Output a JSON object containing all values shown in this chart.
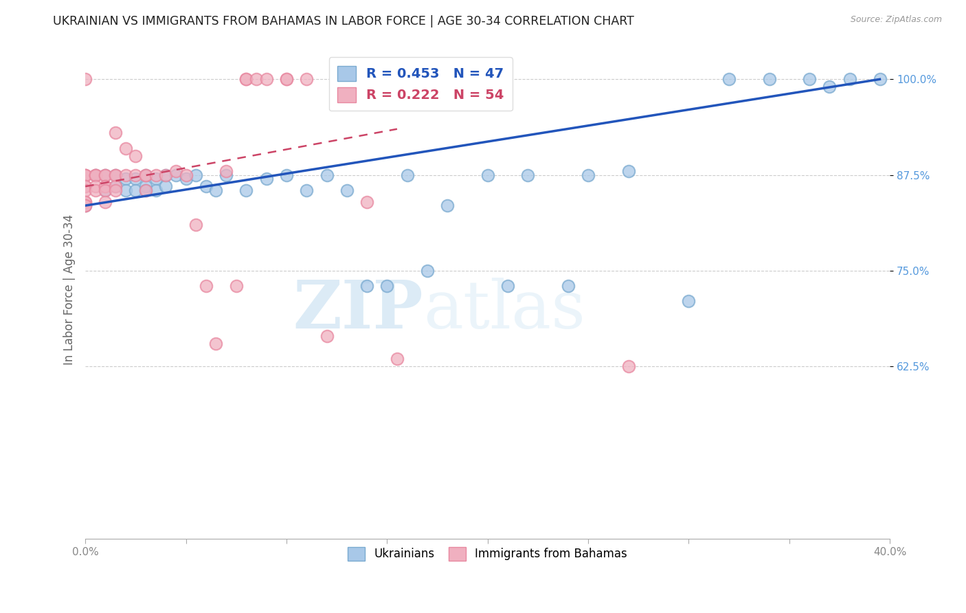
{
  "title": "UKRAINIAN VS IMMIGRANTS FROM BAHAMAS IN LABOR FORCE | AGE 30-34 CORRELATION CHART",
  "source": "Source: ZipAtlas.com",
  "ylabel": "In Labor Force | Age 30-34",
  "xlim": [
    0.0,
    0.4
  ],
  "ylim": [
    0.4,
    1.05
  ],
  "xtick_labels": [
    "0.0%",
    "",
    "",
    "",
    "",
    "",
    "",
    "",
    "",
    ""
  ],
  "xtick_vals": [
    0.0,
    0.05,
    0.1,
    0.15,
    0.2,
    0.25,
    0.3,
    0.35,
    0.4
  ],
  "ytick_labels": [
    "100.0%",
    "87.5%",
    "75.0%",
    "62.5%"
  ],
  "ytick_vals": [
    1.0,
    0.875,
    0.75,
    0.625
  ],
  "blue_R": 0.453,
  "blue_N": 47,
  "pink_R": 0.222,
  "pink_N": 54,
  "blue_color": "#a8c8e8",
  "pink_color": "#f0b0c0",
  "blue_edge_color": "#7aaad0",
  "pink_edge_color": "#e888a0",
  "blue_line_color": "#2255bb",
  "pink_line_color": "#cc4466",
  "watermark_zip": "ZIP",
  "watermark_atlas": "atlas",
  "blue_scatter_x": [
    0.0,
    0.005,
    0.01,
    0.01,
    0.015,
    0.015,
    0.02,
    0.02,
    0.025,
    0.025,
    0.03,
    0.03,
    0.03,
    0.035,
    0.035,
    0.04,
    0.04,
    0.045,
    0.05,
    0.055,
    0.06,
    0.065,
    0.07,
    0.08,
    0.09,
    0.1,
    0.11,
    0.12,
    0.13,
    0.14,
    0.15,
    0.16,
    0.17,
    0.18,
    0.2,
    0.21,
    0.22,
    0.24,
    0.25,
    0.27,
    0.3,
    0.32,
    0.34,
    0.36,
    0.37,
    0.38,
    0.395
  ],
  "blue_scatter_y": [
    0.835,
    0.875,
    0.875,
    0.855,
    0.875,
    0.86,
    0.87,
    0.855,
    0.87,
    0.855,
    0.875,
    0.86,
    0.855,
    0.87,
    0.855,
    0.875,
    0.86,
    0.875,
    0.87,
    0.875,
    0.86,
    0.855,
    0.875,
    0.855,
    0.87,
    0.875,
    0.855,
    0.875,
    0.855,
    0.73,
    0.73,
    0.875,
    0.75,
    0.835,
    0.875,
    0.73,
    0.875,
    0.73,
    0.875,
    0.88,
    0.71,
    1.0,
    1.0,
    1.0,
    0.99,
    1.0,
    1.0
  ],
  "pink_scatter_x": [
    0.0,
    0.0,
    0.0,
    0.0,
    0.0,
    0.0,
    0.0,
    0.0,
    0.0,
    0.0,
    0.0,
    0.005,
    0.005,
    0.005,
    0.005,
    0.005,
    0.01,
    0.01,
    0.01,
    0.01,
    0.01,
    0.01,
    0.015,
    0.015,
    0.015,
    0.015,
    0.015,
    0.02,
    0.02,
    0.025,
    0.025,
    0.03,
    0.03,
    0.03,
    0.035,
    0.04,
    0.045,
    0.05,
    0.055,
    0.06,
    0.065,
    0.07,
    0.075,
    0.08,
    0.08,
    0.085,
    0.09,
    0.1,
    0.1,
    0.11,
    0.12,
    0.14,
    0.155,
    0.27
  ],
  "pink_scatter_y": [
    0.875,
    0.875,
    0.875,
    0.86,
    0.86,
    0.855,
    0.84,
    0.84,
    0.835,
    0.835,
    1.0,
    0.875,
    0.875,
    0.875,
    0.86,
    0.855,
    0.875,
    0.875,
    0.86,
    0.86,
    0.855,
    0.84,
    0.93,
    0.875,
    0.875,
    0.86,
    0.855,
    0.91,
    0.875,
    0.9,
    0.875,
    0.875,
    0.875,
    0.855,
    0.875,
    0.875,
    0.88,
    0.875,
    0.81,
    0.73,
    0.655,
    0.88,
    0.73,
    1.0,
    1.0,
    1.0,
    1.0,
    1.0,
    1.0,
    1.0,
    0.665,
    0.84,
    0.635,
    0.625
  ],
  "blue_line_x": [
    0.0,
    0.395
  ],
  "blue_line_y": [
    0.835,
    1.0
  ],
  "pink_line_x": [
    0.0,
    0.155
  ],
  "pink_line_y": [
    0.86,
    0.935
  ]
}
